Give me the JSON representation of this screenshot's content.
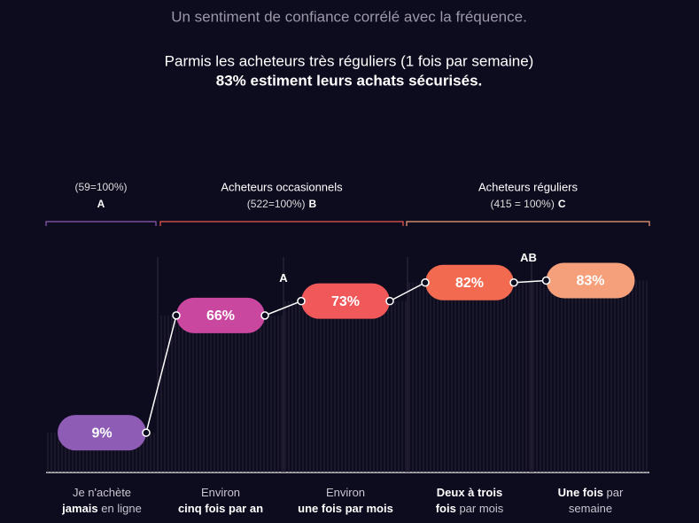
{
  "headline": "Un sentiment de confiance corrélé avec la fréquence.",
  "subheadline": "Parmis les acheteurs très réguliers (1 fois par semaine)",
  "highlight": "83% estiment leurs achats sécurisés.",
  "chart_data": {
    "type": "pill-line",
    "groups": [
      {
        "name": null,
        "count": "(59=100%)",
        "letter": "A",
        "color": "#8e5bb5"
      },
      {
        "name": "Acheteurs occasionnels",
        "count": "(522=100%)",
        "letter": "B",
        "color": "#f0584f"
      },
      {
        "name": "Acheteurs réguliers",
        "count": "(415 = 100%)",
        "letter": "C",
        "color": "#f5a07a"
      }
    ],
    "categories": [
      {
        "lines": [
          [
            {
              "text": "Je n'achète",
              "bold": false
            }
          ],
          [
            {
              "text": "jamais",
              "bold": true
            },
            {
              "text": " en ligne",
              "bold": false
            }
          ]
        ]
      },
      {
        "lines": [
          [
            {
              "text": "Environ",
              "bold": false
            }
          ],
          [
            {
              "text": "cinq fois par an",
              "bold": true
            }
          ]
        ]
      },
      {
        "lines": [
          [
            {
              "text": "Environ",
              "bold": false
            }
          ],
          [
            {
              "text": "une fois par mois",
              "bold": true
            }
          ]
        ]
      },
      {
        "lines": [
          [
            {
              "text": "Deux à trois",
              "bold": true
            }
          ],
          [
            {
              "text": "fois",
              "bold": true
            },
            {
              "text": " par mois",
              "bold": false
            }
          ]
        ]
      },
      {
        "lines": [
          [
            {
              "text": "Une fois",
              "bold": true
            },
            {
              "text": " par",
              "bold": false
            }
          ],
          [
            {
              "text": "semaine",
              "bold": false
            }
          ]
        ]
      }
    ],
    "values": [
      9,
      66,
      73,
      82,
      83
    ],
    "value_labels": [
      "9%",
      "66%",
      "73%",
      "82%",
      "83%"
    ],
    "significance": [
      null,
      null,
      "A",
      null,
      "AB"
    ],
    "colors": [
      "#8e5bb5",
      "#c9479e",
      "#f0585a",
      "#f26a4f",
      "#f5a07a"
    ],
    "ylim": [
      0,
      100
    ]
  }
}
